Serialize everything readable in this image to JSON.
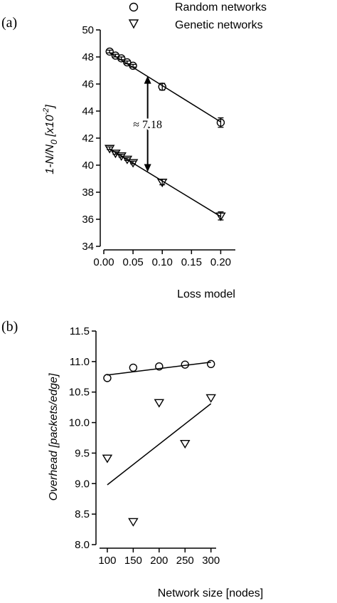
{
  "legend": {
    "random_label": "Random networks",
    "genetic_label": "Genetic networks"
  },
  "chart_data": [
    {
      "panel": "(a)",
      "type": "scatter",
      "xlabel": "Loss model",
      "ylabel_main": "1-N/N",
      "ylabel_sub": "0",
      "ylabel_unit_open": " [x10",
      "ylabel_unit_exp": "-2",
      "ylabel_unit_close": "]",
      "xlim": [
        0,
        0.225
      ],
      "ylim": [
        34,
        50
      ],
      "xticks": [
        0.0,
        0.05,
        0.1,
        0.15,
        0.2
      ],
      "xtick_labels": [
        "0.00",
        "0.05",
        "0.10",
        "0.15",
        "0.20"
      ],
      "yticks": [
        34,
        36,
        38,
        40,
        42,
        44,
        46,
        48,
        50
      ],
      "ytick_labels": [
        "34",
        "36",
        "38",
        "40",
        "42",
        "44",
        "46",
        "48",
        "50"
      ],
      "annotation": {
        "text": "≈ 7.18",
        "x": 0.075,
        "y_top": 46.6,
        "y_bottom": 39.5
      },
      "series": [
        {
          "name": "Random networks",
          "marker": "circle",
          "x": [
            0.01,
            0.02,
            0.03,
            0.04,
            0.05,
            0.1,
            0.2
          ],
          "y": [
            48.4,
            48.1,
            47.9,
            47.6,
            47.35,
            45.8,
            43.15
          ],
          "err": [
            0.1,
            0.1,
            0.1,
            0.1,
            0.1,
            0.25,
            0.35
          ],
          "fit": {
            "x": [
              0.01,
              0.2
            ],
            "y": [
              48.3,
              43.2
            ]
          }
        },
        {
          "name": "Genetic networks",
          "marker": "triangle-down",
          "x": [
            0.01,
            0.02,
            0.03,
            0.04,
            0.05,
            0.1,
            0.2
          ],
          "y": [
            41.25,
            40.9,
            40.7,
            40.45,
            40.2,
            38.75,
            36.25
          ],
          "err": [
            0.1,
            0.1,
            0.1,
            0.1,
            0.1,
            0.2,
            0.3
          ],
          "fit": {
            "x": [
              0.01,
              0.2
            ],
            "y": [
              41.2,
              36.2
            ]
          }
        }
      ]
    },
    {
      "panel": "(b)",
      "type": "scatter",
      "xlabel": "Network size [nodes]",
      "ylabel_main": "Overhead",
      "ylabel_unit": " [packets/edge]",
      "xlim": [
        85,
        310
      ],
      "ylim": [
        8.0,
        11.5
      ],
      "xticks": [
        100,
        150,
        200,
        250,
        300
      ],
      "xtick_labels": [
        "100",
        "150",
        "200",
        "250",
        "300"
      ],
      "yticks": [
        8.0,
        8.5,
        9.0,
        9.5,
        10.0,
        10.5,
        11.0,
        11.5
      ],
      "ytick_labels": [
        "8.0",
        "8.5",
        "9.0",
        "9.5",
        "10.0",
        "10.5",
        "11.0",
        "11.5"
      ],
      "series": [
        {
          "name": "Random networks",
          "marker": "circle",
          "x": [
            100,
            150,
            200,
            250,
            300
          ],
          "y": [
            10.73,
            10.9,
            10.92,
            10.95,
            10.96
          ],
          "fit": {
            "x": [
              100,
              300
            ],
            "y": [
              10.78,
              10.99
            ]
          }
        },
        {
          "name": "Genetic networks",
          "marker": "triangle-down",
          "x": [
            100,
            150,
            200,
            250,
            300
          ],
          "y": [
            9.42,
            8.38,
            10.33,
            9.66,
            10.41
          ],
          "fit": {
            "x": [
              100,
              300
            ],
            "y": [
              8.98,
              10.31
            ]
          }
        }
      ]
    }
  ]
}
